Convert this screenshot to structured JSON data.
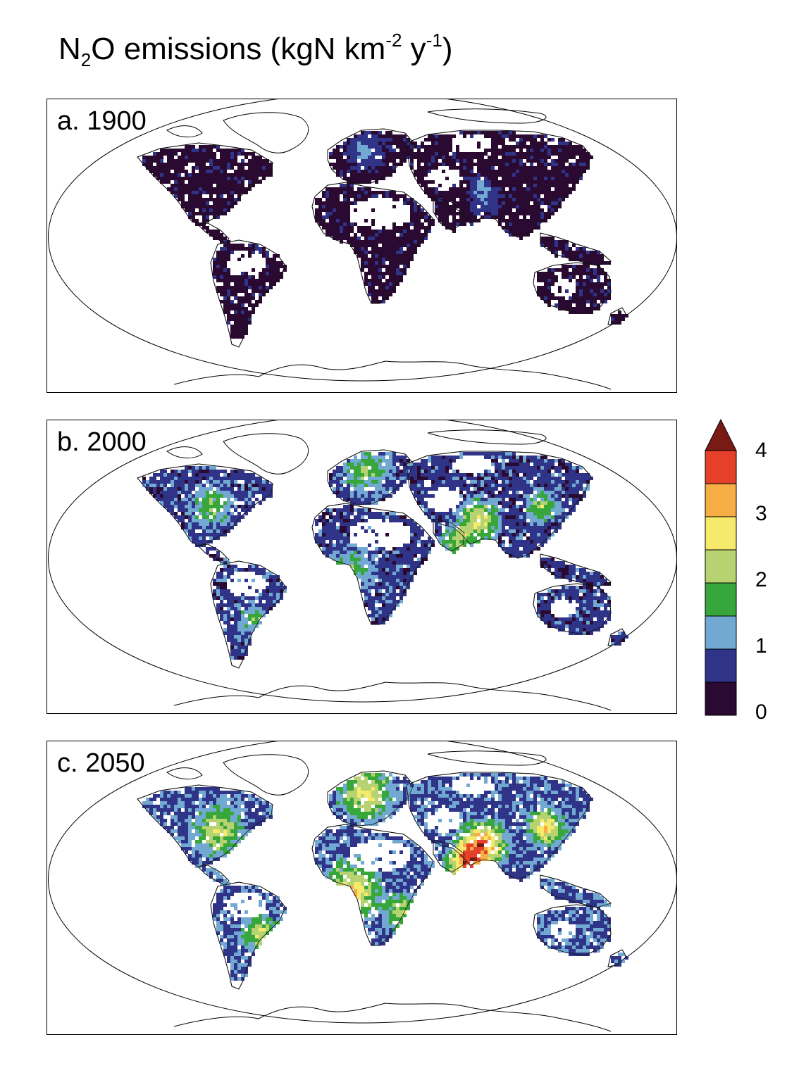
{
  "title": {
    "prefix": "N",
    "sub": "2",
    "middle": "O emissions (kgN km",
    "sup1": "-2",
    "space": " y",
    "sup2": "-1",
    "suffix": ")"
  },
  "panels": [
    {
      "label": "a. 1900",
      "year": 1900,
      "intensity": 0
    },
    {
      "label": "b. 2000",
      "year": 2000,
      "intensity": 1
    },
    {
      "label": "c. 2050",
      "year": 2050,
      "intensity": 2
    }
  ],
  "legend": {
    "ticks": [
      "4",
      "3",
      "2",
      "1",
      "0"
    ],
    "range": [
      0,
      4
    ],
    "step": 0.5,
    "extend": "max",
    "colors": [
      "#2a0a30",
      "#2f3488",
      "#72a9d2",
      "#37a63b",
      "#b7d371",
      "#f6e96b",
      "#f6ad45",
      "#e5412a"
    ],
    "over_color": "#7a1a14"
  }
}
